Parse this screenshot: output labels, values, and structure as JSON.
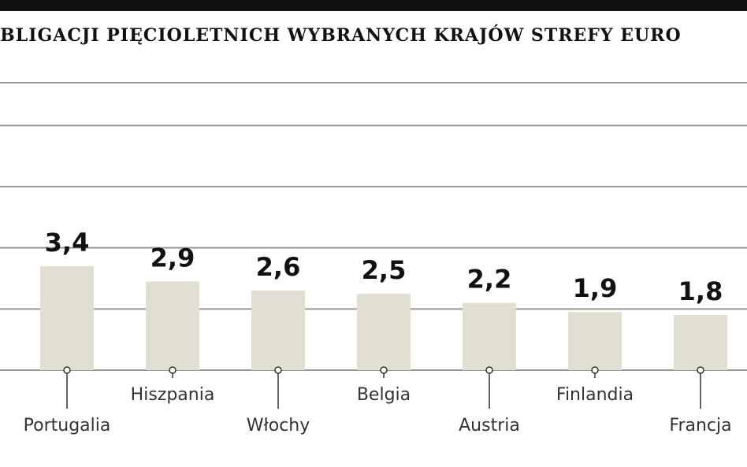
{
  "chart_data": {
    "type": "bar",
    "title": "OBLIGACJI PIĘCIOLETNICH WYBRANYCH KRAJÓW STREFY EURO",
    "categories": [
      "Portugalia",
      "Hiszpania",
      "Włochy",
      "Belgia",
      "Austria",
      "Finlandia",
      "Francja"
    ],
    "values": [
      3.4,
      2.9,
      2.6,
      2.5,
      2.2,
      1.9,
      1.8
    ],
    "value_labels": [
      "3,4",
      "2,9",
      "2,6",
      "2,5",
      "2,2",
      "1,9",
      "1,8"
    ],
    "color": "#e0dfd2",
    "ylim": [
      0,
      9.4
    ],
    "yticks": [
      0,
      2,
      4,
      6,
      8
    ],
    "grid": true
  }
}
